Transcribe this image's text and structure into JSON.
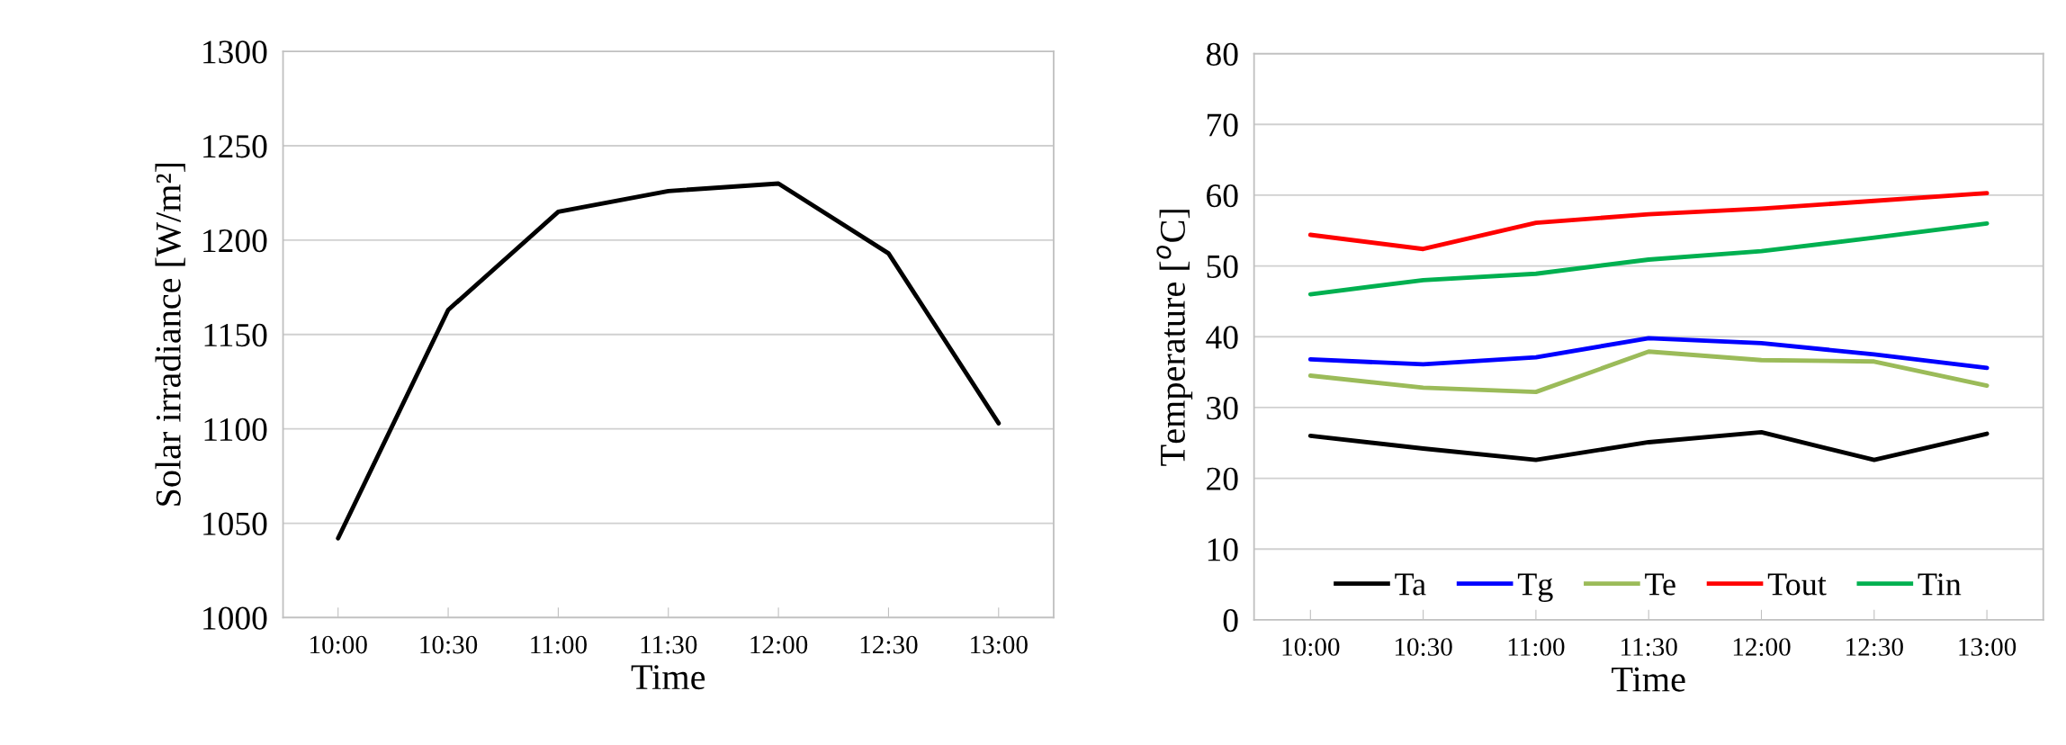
{
  "chart_data": [
    {
      "type": "line",
      "xlabel": "Time",
      "ylabel": "Solar irradiance [W/m²]",
      "categories": [
        "10:00",
        "10:30",
        "11:00",
        "11:30",
        "12:00",
        "12:30",
        "13:00"
      ],
      "series": [
        {
          "color": "#000000",
          "values": [
            1042,
            1163,
            1215,
            1226,
            1230,
            1193,
            1103
          ]
        }
      ],
      "ylim": [
        1000,
        1300
      ],
      "yticks": [
        1000,
        1050,
        1100,
        1150,
        1200,
        1250,
        1300
      ],
      "grid": "y",
      "legend": false
    },
    {
      "type": "line",
      "xlabel": "Time",
      "ylabel": "Temperature [$^{o}$C]",
      "categories": [
        "10:00",
        "10:30",
        "11:00",
        "11:30",
        "12:00",
        "12:30",
        "13:00"
      ],
      "series": [
        {
          "name": "Ta",
          "color": "#000000",
          "values": [
            26.0,
            24.2,
            22.6,
            25.1,
            26.5,
            22.6,
            26.3
          ]
        },
        {
          "name": "Tg",
          "color": "#0000ff",
          "values": [
            36.8,
            36.1,
            37.1,
            39.8,
            39.1,
            37.5,
            35.6
          ]
        },
        {
          "name": "Te",
          "color": "#9bbb59",
          "values": [
            34.5,
            32.8,
            32.2,
            37.9,
            36.7,
            36.5,
            33.1
          ]
        },
        {
          "name": "Tout",
          "color": "#ff0000",
          "values": [
            54.4,
            52.4,
            56.1,
            57.3,
            58.1,
            59.2,
            60.3
          ]
        },
        {
          "name": "Tin",
          "color": "#00b050",
          "values": [
            46.0,
            48.0,
            48.9,
            50.9,
            52.1,
            54.0,
            56.0
          ]
        }
      ],
      "ylim": [
        0,
        80
      ],
      "yticks": [
        0,
        10,
        20,
        30,
        40,
        50,
        60,
        70,
        80
      ],
      "grid": "y",
      "legend": "bottom"
    }
  ]
}
